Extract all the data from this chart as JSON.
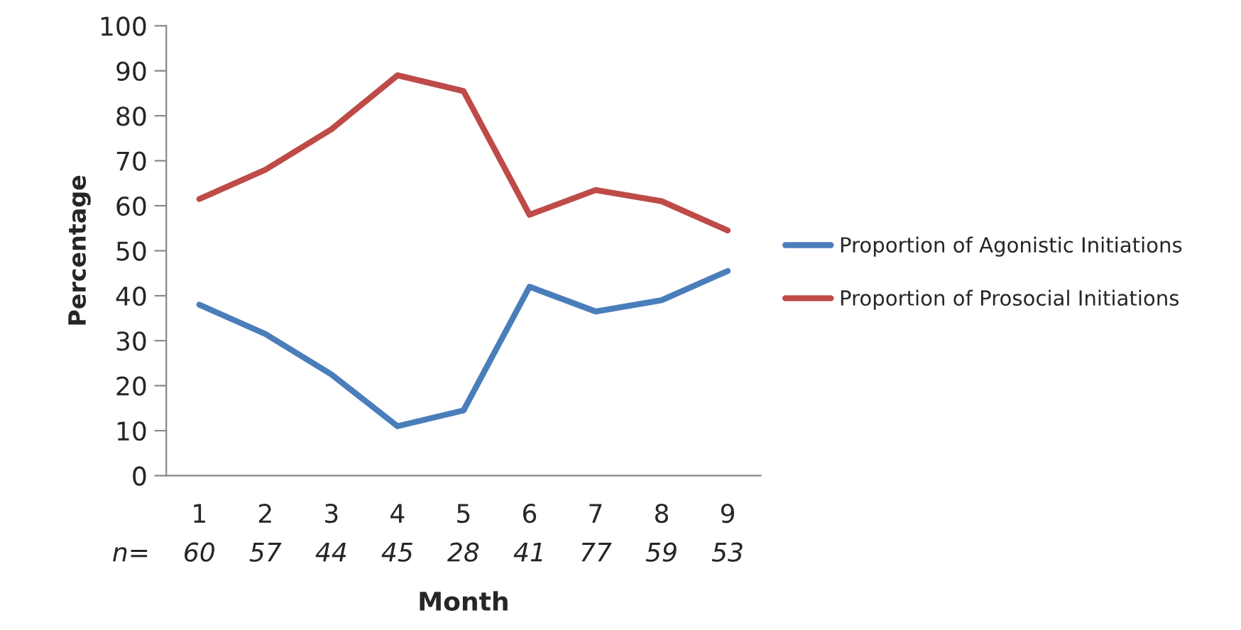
{
  "chart_data": {
    "type": "line",
    "xlabel": "Month",
    "ylabel": "Percentage",
    "categories": [
      "1",
      "2",
      "3",
      "4",
      "5",
      "6",
      "7",
      "8",
      "9"
    ],
    "series": [
      {
        "name": "Proportion of Agonistic Initiations",
        "color": "#4a7ebb",
        "values": [
          38,
          31.5,
          22.5,
          11,
          14.5,
          42,
          36.5,
          39,
          45.5
        ]
      },
      {
        "name": "Proportion of Prosocial Initiations",
        "color": "#be4b48",
        "values": [
          61.5,
          68,
          77,
          89,
          85.5,
          58,
          63.5,
          61,
          54.5
        ]
      }
    ],
    "ylim": [
      0,
      100
    ],
    "yticks": [
      0,
      10,
      20,
      30,
      40,
      50,
      60,
      70,
      80,
      90,
      100
    ],
    "annotations": [
      "n=",
      "60",
      "57",
      "44",
      "45",
      "28",
      "41",
      "77",
      "59",
      "53"
    ],
    "grid": false,
    "legend": "right",
    "marker": "none",
    "line_style": "solid"
  }
}
